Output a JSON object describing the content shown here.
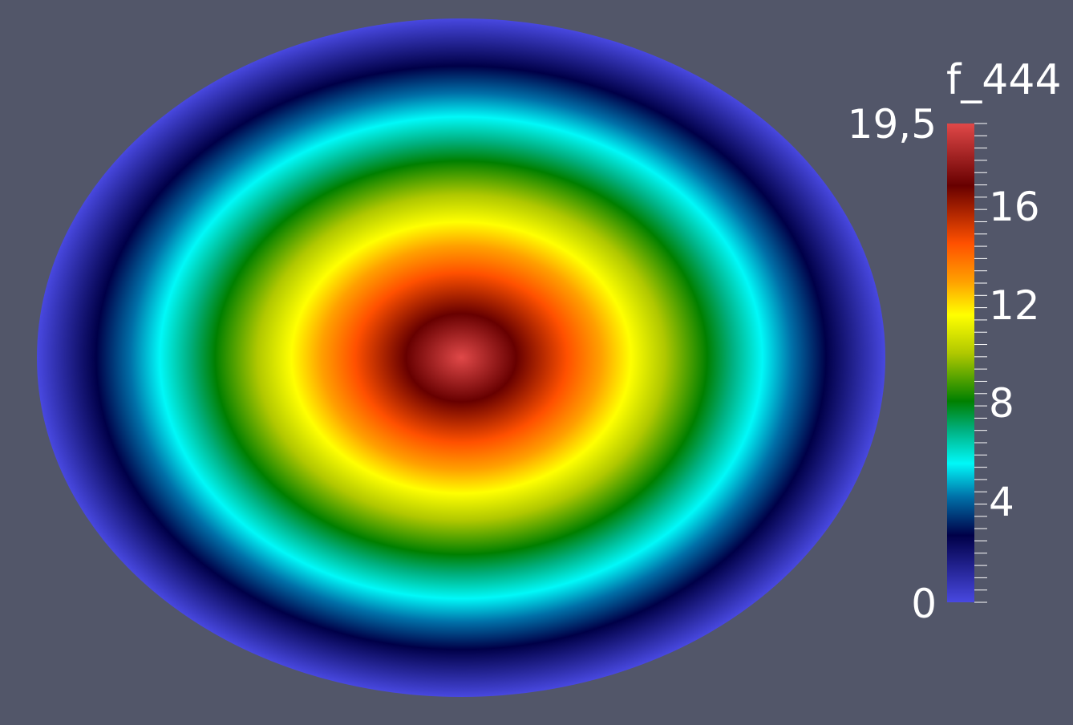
{
  "legend": {
    "title": "f_444",
    "max_label": "19,5",
    "min_label": "0",
    "range": [
      0,
      19.5
    ],
    "ticks": [
      {
        "value": 16,
        "label": "16"
      },
      {
        "value": 12,
        "label": "12"
      },
      {
        "value": 8,
        "label": "8"
      },
      {
        "value": 4,
        "label": "4"
      }
    ]
  },
  "colors": {
    "background": "#525669",
    "colormap": [
      {
        "t": 0.0,
        "color": "#4848e0"
      },
      {
        "t": 0.14,
        "color": "#000048"
      },
      {
        "t": 0.22,
        "color": "#0070a8"
      },
      {
        "t": 0.29,
        "color": "#00f8f8"
      },
      {
        "t": 0.36,
        "color": "#00b080"
      },
      {
        "t": 0.42,
        "color": "#008000"
      },
      {
        "t": 0.52,
        "color": "#b0c800"
      },
      {
        "t": 0.6,
        "color": "#ffff00"
      },
      {
        "t": 0.67,
        "color": "#ffa000"
      },
      {
        "t": 0.75,
        "color": "#ff5000"
      },
      {
        "t": 0.87,
        "color": "#680000"
      },
      {
        "t": 1.0,
        "color": "#e04848"
      }
    ]
  }
}
